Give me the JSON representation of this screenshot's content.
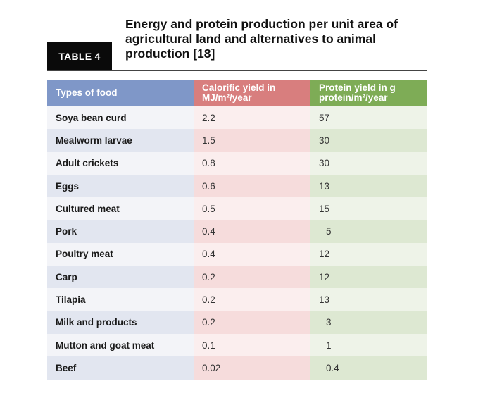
{
  "tag": "TABLE 4",
  "title": "Energy and protein production per unit area of agricultural land and alternatives to animal production [18]",
  "headers": {
    "food": "Types of food",
    "calorific": "Calorific yield in MJ/m²/year",
    "protein": "Protein yield in g protein/m²/year"
  },
  "rows": [
    {
      "food": "Soya bean curd",
      "cal": "2.2",
      "pro": "57"
    },
    {
      "food": "Mealworm larvae",
      "cal": "1.5",
      "pro": "30"
    },
    {
      "food": "Adult crickets",
      "cal": "0.8",
      "pro": "30"
    },
    {
      "food": "Eggs",
      "cal": "0.6",
      "pro": "13"
    },
    {
      "food": "Cultured meat",
      "cal": "0.5",
      "pro": "15"
    },
    {
      "food": "Pork",
      "cal": "0.4",
      "pro": "5"
    },
    {
      "food": "Poultry meat",
      "cal": "0.4",
      "pro": "12"
    },
    {
      "food": "Carp",
      "cal": "0.2",
      "pro": "12"
    },
    {
      "food": "Tilapia",
      "cal": "0.2",
      "pro": "13"
    },
    {
      "food": "Milk and products",
      "cal": "0.2",
      "pro": "3"
    },
    {
      "food": "Mutton and goat meat",
      "cal": "0.1",
      "pro": "1"
    },
    {
      "food": "Beef",
      "cal": "0.02",
      "pro": "0.4"
    }
  ],
  "colors": {
    "tag_bg": "#0a0a0a",
    "food_header": "#7f97c8",
    "calorific_header": "#d87e7e",
    "protein_header": "#7eac56"
  }
}
